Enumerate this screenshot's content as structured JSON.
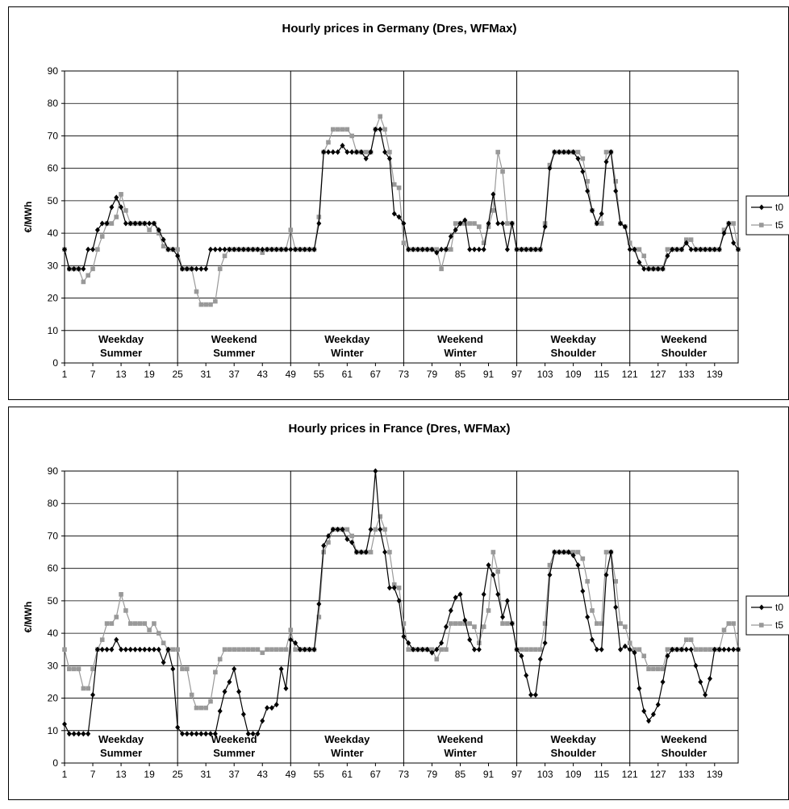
{
  "chart_data": [
    {
      "type": "line",
      "title": "Hourly prices in Germany (Dres, WFMax)",
      "ylabel": "€/MWh",
      "ylim": [
        0,
        90
      ],
      "yticks": [
        0,
        10,
        20,
        30,
        40,
        50,
        60,
        70,
        80,
        90
      ],
      "xlim": [
        1,
        144
      ],
      "xticks": [
        1,
        7,
        13,
        19,
        25,
        31,
        37,
        43,
        49,
        55,
        61,
        67,
        73,
        79,
        85,
        91,
        97,
        103,
        109,
        115,
        121,
        127,
        133,
        139
      ],
      "grid": true,
      "legend": "right",
      "segments": [
        {
          "line1": "Weekday",
          "line2": "Summer"
        },
        {
          "line1": "Weekend",
          "line2": "Summer"
        },
        {
          "line1": "Weekday",
          "line2": "Winter"
        },
        {
          "line1": "Weekend",
          "line2": "Winter"
        },
        {
          "line1": "Weekday",
          "line2": "Shoulder"
        },
        {
          "line1": "Weekend",
          "line2": "Shoulder"
        }
      ],
      "series": [
        {
          "name": "t0",
          "color": "#000000",
          "marker": "diamond",
          "values": [
            35,
            29,
            29,
            29,
            29,
            35,
            35,
            41,
            43,
            43,
            48,
            51,
            48,
            43,
            43,
            43,
            43,
            43,
            43,
            43,
            41,
            38,
            35,
            35,
            33,
            29,
            29,
            29,
            29,
            29,
            29,
            35,
            35,
            35,
            35,
            35,
            35,
            35,
            35,
            35,
            35,
            35,
            35,
            35,
            35,
            35,
            35,
            35,
            35,
            35,
            35,
            35,
            35,
            35,
            43,
            65,
            65,
            65,
            65,
            67,
            65,
            65,
            65,
            65,
            63,
            65,
            72,
            72,
            65,
            63,
            46,
            45,
            43,
            35,
            35,
            35,
            35,
            35,
            35,
            34,
            35,
            35,
            39,
            41,
            43,
            44,
            35,
            35,
            35,
            35,
            43,
            52,
            43,
            43,
            35,
            43,
            35,
            35,
            35,
            35,
            35,
            35,
            42,
            60,
            65,
            65,
            65,
            65,
            65,
            63,
            59,
            53,
            47,
            43,
            46,
            62,
            65,
            53,
            43,
            42,
            35,
            35,
            31,
            29,
            29,
            29,
            29,
            29,
            33,
            35,
            35,
            35,
            37,
            35,
            35,
            35,
            35,
            35,
            35,
            35,
            40,
            43,
            37,
            35
          ]
        },
        {
          "name": "t5",
          "color": "#999999",
          "marker": "square",
          "values": [
            35,
            29,
            29,
            29,
            25,
            27,
            29,
            35,
            39,
            43,
            43,
            45,
            52,
            47,
            43,
            43,
            43,
            43,
            41,
            43,
            40,
            36,
            35,
            35,
            35,
            29,
            29,
            29,
            22,
            18,
            18,
            18,
            19,
            29,
            33,
            35,
            35,
            35,
            35,
            35,
            35,
            35,
            34,
            35,
            35,
            35,
            35,
            35,
            41,
            35,
            35,
            35,
            35,
            35,
            45,
            65,
            68,
            72,
            72,
            72,
            72,
            70,
            65,
            65,
            65,
            65,
            72,
            76,
            72,
            65,
            55,
            54,
            37,
            35,
            35,
            35,
            35,
            35,
            35,
            35,
            29,
            35,
            35,
            43,
            43,
            43,
            43,
            43,
            42,
            37,
            42,
            47,
            65,
            59,
            43,
            43,
            35,
            35,
            35,
            35,
            35,
            35,
            43,
            61,
            65,
            65,
            65,
            65,
            65,
            65,
            63,
            56,
            47,
            43,
            43,
            65,
            65,
            56,
            43,
            42,
            37,
            35,
            35,
            33,
            29,
            29,
            29,
            29,
            35,
            35,
            35,
            35,
            38,
            38,
            35,
            35,
            35,
            35,
            35,
            35,
            41,
            43,
            43,
            35
          ]
        }
      ]
    },
    {
      "type": "line",
      "title": "Hourly prices in France (Dres, WFMax)",
      "ylabel": "€/MWh",
      "ylim": [
        0,
        90
      ],
      "yticks": [
        0,
        10,
        20,
        30,
        40,
        50,
        60,
        70,
        80,
        90
      ],
      "xlim": [
        1,
        144
      ],
      "xticks": [
        1,
        7,
        13,
        19,
        25,
        31,
        37,
        43,
        49,
        55,
        61,
        67,
        73,
        79,
        85,
        91,
        97,
        103,
        109,
        115,
        121,
        127,
        133,
        139
      ],
      "grid": true,
      "legend": "right",
      "segments": [
        {
          "line1": "Weekday",
          "line2": "Summer"
        },
        {
          "line1": "Weekend",
          "line2": "Summer"
        },
        {
          "line1": "Weekday",
          "line2": "Winter"
        },
        {
          "line1": "Weekend",
          "line2": "Winter"
        },
        {
          "line1": "Weekday",
          "line2": "Shoulder"
        },
        {
          "line1": "Weekend",
          "line2": "Shoulder"
        }
      ],
      "series": [
        {
          "name": "t0",
          "color": "#000000",
          "marker": "diamond",
          "values": [
            12,
            9,
            9,
            9,
            9,
            9,
            21,
            35,
            35,
            35,
            35,
            38,
            35,
            35,
            35,
            35,
            35,
            35,
            35,
            35,
            35,
            31,
            35,
            29,
            11,
            9,
            9,
            9,
            9,
            9,
            9,
            9,
            9,
            16,
            22,
            25,
            29,
            22,
            15,
            9,
            9,
            9,
            13,
            17,
            17,
            18,
            29,
            23,
            38,
            37,
            35,
            35,
            35,
            35,
            49,
            67,
            70,
            72,
            72,
            72,
            69,
            68,
            65,
            65,
            65,
            72,
            90,
            72,
            65,
            54,
            54,
            50,
            39,
            37,
            35,
            35,
            35,
            35,
            34,
            35,
            37,
            42,
            47,
            51,
            52,
            44,
            38,
            35,
            35,
            52,
            61,
            58,
            52,
            45,
            50,
            43,
            35,
            33,
            27,
            21,
            21,
            32,
            37,
            58,
            65,
            65,
            65,
            65,
            64,
            61,
            53,
            45,
            38,
            35,
            35,
            58,
            65,
            48,
            35,
            36,
            35,
            34,
            23,
            16,
            13,
            15,
            18,
            25,
            33,
            35,
            35,
            35,
            35,
            35,
            30,
            25,
            21,
            26,
            35,
            35,
            35,
            35,
            35,
            35
          ]
        },
        {
          "name": "t5",
          "color": "#999999",
          "marker": "square",
          "values": [
            35,
            29,
            29,
            29,
            23,
            23,
            29,
            35,
            38,
            43,
            43,
            45,
            52,
            47,
            43,
            43,
            43,
            43,
            41,
            43,
            40,
            37,
            35,
            35,
            35,
            29,
            29,
            21,
            17,
            17,
            17,
            19,
            28,
            32,
            35,
            35,
            35,
            35,
            35,
            35,
            35,
            35,
            34,
            35,
            35,
            35,
            35,
            35,
            41,
            35,
            35,
            35,
            35,
            35,
            45,
            65,
            68,
            72,
            72,
            72,
            72,
            70,
            65,
            65,
            65,
            65,
            72,
            76,
            72,
            65,
            55,
            54,
            43,
            35,
            35,
            35,
            35,
            35,
            35,
            32,
            35,
            35,
            43,
            43,
            43,
            43,
            43,
            42,
            37,
            42,
            47,
            65,
            59,
            43,
            43,
            43,
            35,
            35,
            35,
            35,
            35,
            35,
            43,
            61,
            65,
            65,
            65,
            65,
            65,
            65,
            63,
            56,
            47,
            43,
            43,
            65,
            65,
            56,
            43,
            42,
            37,
            35,
            35,
            33,
            29,
            29,
            29,
            29,
            35,
            35,
            35,
            35,
            38,
            38,
            35,
            35,
            35,
            35,
            35,
            35,
            41,
            43,
            43,
            35
          ]
        }
      ]
    }
  ]
}
